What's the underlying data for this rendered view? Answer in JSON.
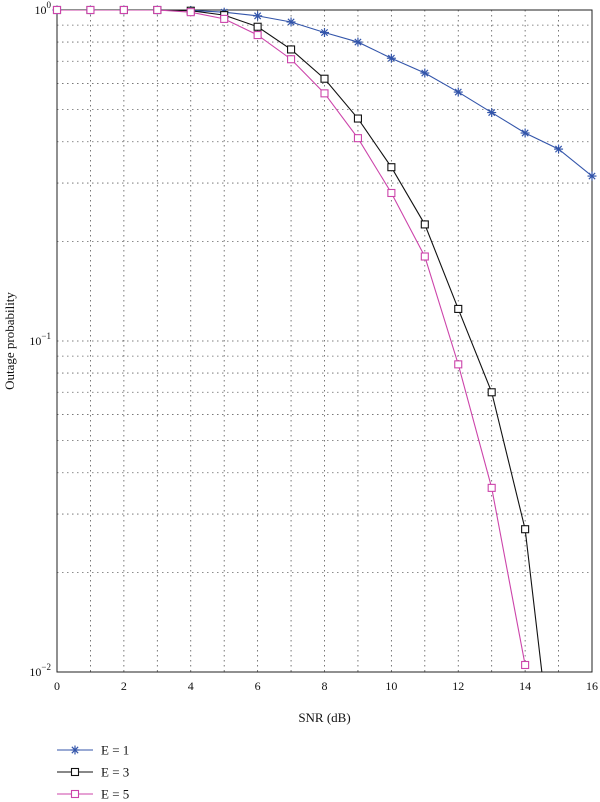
{
  "chart_data": {
    "type": "line",
    "title": "",
    "xlabel": "SNR (dB)",
    "ylabel": "Outage probability",
    "xlim": [
      0,
      16
    ],
    "ylim": [
      0.01,
      1
    ],
    "yscale": "log",
    "grid": true,
    "legend_position": "bottom-left",
    "x_ticks": [
      "0",
      "2",
      "4",
      "6",
      "8",
      "10",
      "12",
      "14",
      "16"
    ],
    "y_ticks": [
      {
        "mantissa": "10",
        "exponent": "0"
      },
      {
        "mantissa": "10",
        "exponent": "−1"
      },
      {
        "mantissa": "10",
        "exponent": "−2"
      }
    ],
    "series": [
      {
        "name": "E = 1",
        "color": "#3355aa",
        "marker": "asterisk",
        "x": [
          0,
          1,
          2,
          3,
          4,
          5,
          6,
          7,
          8,
          9,
          10,
          11,
          12,
          13,
          14,
          15,
          16
        ],
        "y": [
          1.0,
          1.0,
          1.0,
          1.0,
          0.997,
          0.985,
          0.96,
          0.92,
          0.855,
          0.8,
          0.715,
          0.645,
          0.565,
          0.49,
          0.425,
          0.38,
          0.315
        ]
      },
      {
        "name": "E = 3",
        "color": "#111111",
        "marker": "square",
        "x": [
          0,
          1,
          2,
          3,
          4,
          5,
          6,
          7,
          8,
          9,
          10,
          11,
          12,
          13,
          14,
          14.5
        ],
        "y": [
          1.0,
          1.0,
          1.0,
          1.0,
          0.995,
          0.965,
          0.89,
          0.76,
          0.62,
          0.47,
          0.335,
          0.225,
          0.125,
          0.07,
          0.027,
          0.01
        ]
      },
      {
        "name": "E = 5",
        "color": "#cc44aa",
        "marker": "square",
        "x": [
          0,
          1,
          2,
          3,
          4,
          5,
          6,
          7,
          8,
          9,
          10,
          11,
          12,
          13,
          14
        ],
        "y": [
          1.0,
          1.0,
          1.0,
          1.0,
          0.985,
          0.94,
          0.84,
          0.71,
          0.56,
          0.41,
          0.28,
          0.18,
          0.085,
          0.036,
          0.0105
        ]
      }
    ]
  }
}
